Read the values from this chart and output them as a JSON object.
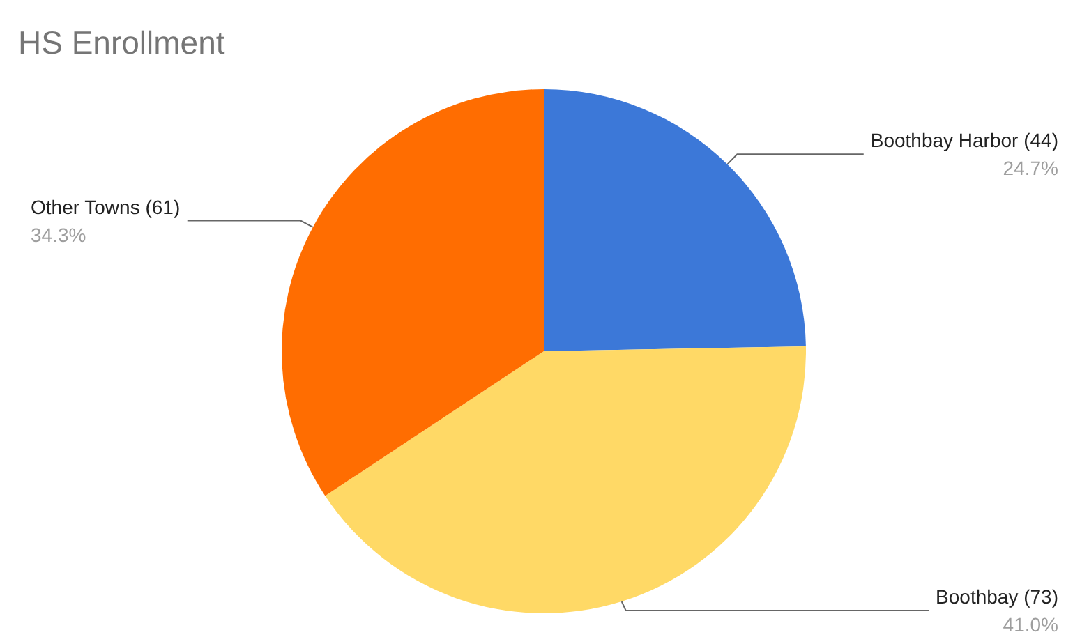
{
  "chart_data": {
    "type": "pie",
    "title": "HS Enrollment",
    "categories": [
      "Boothbay Harbor (44)",
      "Boothbay (73)",
      "Other Towns (61)"
    ],
    "values": [
      24.7,
      41.0,
      34.3
    ],
    "colors": [
      "#3c78d8",
      "#ffd966",
      "#ff6d01"
    ],
    "value_labels": [
      "24.7%",
      "41.0%",
      "34.3%"
    ],
    "legend": false
  }
}
